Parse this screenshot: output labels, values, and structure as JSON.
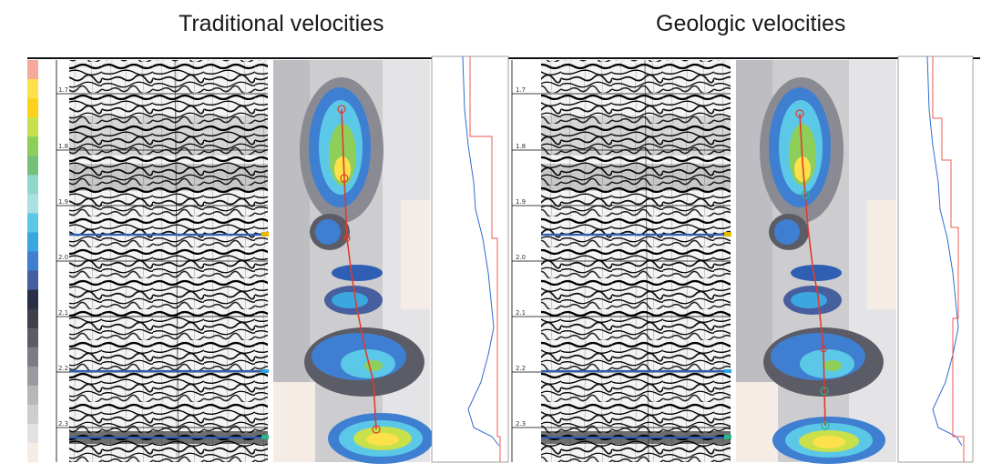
{
  "titles": {
    "left": "Traditional velocities",
    "right": "Geologic velocities"
  },
  "time_axis": {
    "ticks": [
      "1.7",
      "1.8",
      "1.9",
      "2.0",
      "2.1",
      "2.2",
      "2.3"
    ]
  },
  "color_scale": [
    "#f6a99a",
    "#fde14b",
    "#fdd21a",
    "#c8e04a",
    "#8ecf5a",
    "#74c07b",
    "#8fd7cc",
    "#a9e0e2",
    "#5cc8e8",
    "#3aa7e0",
    "#3e7fd1",
    "#475f9e",
    "#2a2f45",
    "#3e3e4c",
    "#5c5c66",
    "#7b7b83",
    "#999aa0",
    "#b6b6bb",
    "#cdcdd0",
    "#e2e2e4",
    "#f6ece6"
  ],
  "colors": {
    "horizon_blue": "#2f5fb3",
    "pick_line": "#e23a2a",
    "velocity_trace": "#2f6bd0",
    "velocity_step": "#ef5a55"
  }
}
